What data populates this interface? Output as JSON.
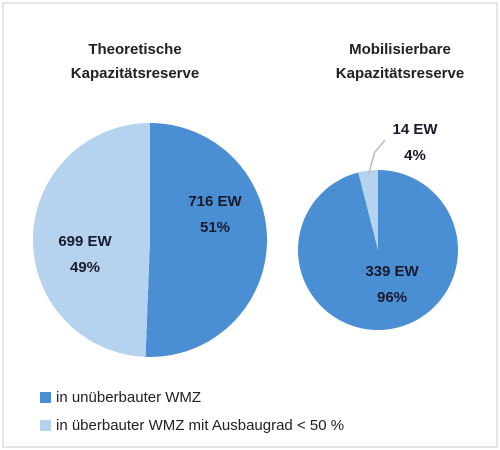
{
  "legend": [
    {
      "name": "in unüberbauter WMZ",
      "color": "#4a8ed3"
    },
    {
      "name": "in überbauter WMZ mit Ausbaugrad < 50 %",
      "color": "#b5d2ee"
    }
  ],
  "chart_data": [
    {
      "type": "pie",
      "title_lines": [
        "Theoretische",
        "Kapazitätsreserve"
      ],
      "values": [
        716,
        699
      ],
      "value_labels": [
        "716 EW",
        "699 EW"
      ],
      "shares": [
        51,
        49
      ],
      "share_labels": [
        "51%",
        "49%"
      ],
      "colors": [
        "#4a8ed3",
        "#b5d2ee"
      ]
    },
    {
      "type": "pie",
      "title_lines": [
        "Mobilisierbare",
        "Kapazitätsreserve"
      ],
      "values": [
        339,
        14
      ],
      "value_labels": [
        "339 EW",
        "14 EW"
      ],
      "shares": [
        96,
        4
      ],
      "share_labels": [
        "96%",
        "4%"
      ],
      "colors": [
        "#4a8ed3",
        "#b5d2ee"
      ]
    }
  ]
}
